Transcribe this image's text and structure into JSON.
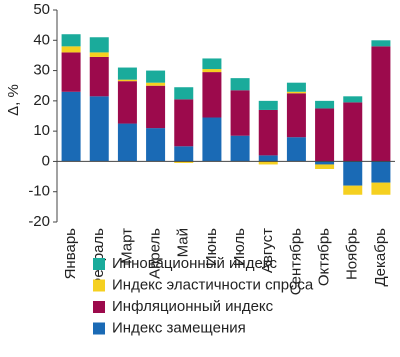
{
  "chart_data": {
    "type": "stacked_bar",
    "y_label": "Δ, %",
    "categories": [
      "Январь",
      "Февраль",
      "Март",
      "Апрель",
      "Май",
      "Июнь",
      "Июль",
      "Август",
      "Сентябрь",
      "Октябрь",
      "Ноябрь",
      "Декабрь"
    ],
    "series": [
      {
        "name": "Индекс замещения",
        "color": "#1a6ab5",
        "values": [
          23,
          21.5,
          12.5,
          11,
          5,
          14.5,
          8.5,
          2,
          8,
          -1,
          -8,
          -7
        ]
      },
      {
        "name": "Инфляционный индекс",
        "color": "#9c0a4c",
        "values": [
          13,
          13,
          14,
          14,
          15.5,
          15,
          15,
          15,
          14.5,
          17.5,
          19.5,
          38
        ]
      },
      {
        "name": "Индекс эластичности спроса",
        "color": "#f5d020",
        "values": [
          2,
          1.5,
          0.5,
          1,
          -0.5,
          1,
          0,
          -1,
          0.5,
          -1.5,
          -3,
          -4
        ]
      },
      {
        "name": "Инновационный индекс",
        "color": "#1aab9b",
        "values": [
          4,
          5,
          4,
          4,
          4,
          3.5,
          4,
          3,
          3,
          2.5,
          2,
          2
        ]
      }
    ],
    "ylim": [
      -20,
      50
    ],
    "yticks": [
      -20,
      -10,
      0,
      10,
      20,
      30,
      40,
      50
    ],
    "legend": "bottom"
  }
}
